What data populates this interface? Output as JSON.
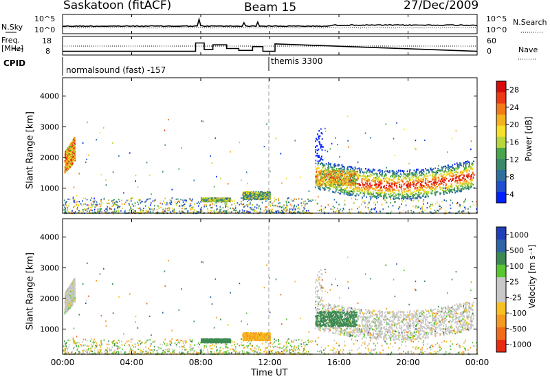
{
  "header": {
    "station": "Saskatoon (fitACF)",
    "beam": "Beam 15",
    "date": "27/Dec/2009"
  },
  "top_panel": {
    "left_label": "N.Sky",
    "left_ticks": [
      "10^5",
      "10^0"
    ],
    "right_label": "N.Search",
    "right_ticks": [
      "10^5",
      "10^0"
    ]
  },
  "freq_panel": {
    "left_label_1": "Freq.",
    "left_label_2": "[MHz]",
    "left_ticks": [
      "18",
      "8"
    ],
    "right_label": "Nave",
    "right_ticks": [
      "60",
      "0"
    ]
  },
  "cpid_panel": {
    "label": "CPID",
    "mode_1": "normalsound (fast) -157",
    "mode_2": "themis 3300"
  },
  "power_panel": {
    "ylabel": "Slant Range [km]",
    "yticks": [
      "4000",
      "3000",
      "2000",
      "1000"
    ],
    "colorbar_label": "Power [dB]",
    "colorbar_ticks": [
      "28",
      "24",
      "20",
      "16",
      "12",
      "8",
      "4"
    ],
    "colors": [
      "#0020ff",
      "#1f4fd0",
      "#2f6fa0",
      "#3a8a6a",
      "#49a64a",
      "#b8d63a",
      "#f5e02a",
      "#f5b21f",
      "#f27a18",
      "#ec3a12",
      "#d80c0c"
    ]
  },
  "velocity_panel": {
    "ylabel": "Slant Range [km]",
    "yticks": [
      "4000",
      "3000",
      "2000",
      "1000"
    ],
    "colorbar_label": "Velocity [m s⁻¹]",
    "colorbar_ticks": [
      "1000",
      "500",
      "100",
      "25",
      "-25",
      "-100",
      "-500",
      "-1000"
    ],
    "colors": [
      "#1f3fb8",
      "#2f63a8",
      "#3c8a52",
      "#59c72f",
      "#c8c8c8",
      "#c8c8c8",
      "#f6c020",
      "#f59a20",
      "#f26b18",
      "#ea2a10"
    ]
  },
  "x_axis": {
    "ticks": [
      "00:00",
      "04:00",
      "08:00",
      "12:00",
      "16:00",
      "20:00",
      "00:00"
    ],
    "label": "Time UT"
  },
  "chart_data": {
    "type": "heatmap",
    "title": "Saskatoon (fitACF)",
    "subtitle": "Beam 15",
    "xlabel": "Time UT",
    "ylabel": "Slant Range [km]",
    "xlim": [
      0,
      24
    ],
    "ylim": [
      180,
      4600
    ],
    "power_range_dB": [
      0,
      30
    ],
    "velocity_range_ms": [
      -1000,
      1000
    ],
    "scatter_regions": [
      {
        "t_start": 0.1,
        "t_end": 0.7,
        "range_start": 1600,
        "range_end": 2700,
        "power_dB": 20,
        "velocity_ms": 0
      },
      {
        "t_start": 8.0,
        "t_end": 9.7,
        "range_start": 580,
        "range_end": 700,
        "power_dB": 14,
        "velocity_ms": 150
      },
      {
        "t_start": 10.4,
        "t_end": 12.0,
        "range_start": 650,
        "range_end": 900,
        "power_dB": 12,
        "velocity_ms": -100
      },
      {
        "t_start": 14.6,
        "t_end": 23.8,
        "range_start": 900,
        "range_end": 1900,
        "power_dB": 22,
        "velocity_ms": 0
      },
      {
        "t_start": 14.6,
        "t_end": 17.0,
        "range_start": 1100,
        "range_end": 1600,
        "power_dB": 18,
        "velocity_ms": 150
      }
    ],
    "top_series": [
      {
        "name": "N.Sky",
        "log_scale": true
      },
      {
        "name": "N.Search",
        "log_scale": true
      }
    ],
    "freq_series": {
      "name": "Freq.",
      "ylim_MHz": [
        8,
        18
      ],
      "x": [
        0,
        7.7,
        7.7,
        8.2,
        8.2,
        8.7,
        8.7,
        9.5,
        9.5,
        10.2,
        10.2,
        11.0,
        11.0,
        11.6,
        11.6,
        12.3,
        12.3,
        24
      ],
      "y": [
        10,
        10,
        14.5,
        14.5,
        11,
        11,
        13.5,
        13.5,
        11.5,
        11.5,
        10.5,
        10.5,
        12.5,
        12.5,
        10,
        10,
        14,
        10
      ]
    },
    "cpid_changes": [
      {
        "time": 0.0,
        "label": "normalsound (fast) -157"
      },
      {
        "time": 12.0,
        "label": "themis 3300"
      }
    ]
  }
}
